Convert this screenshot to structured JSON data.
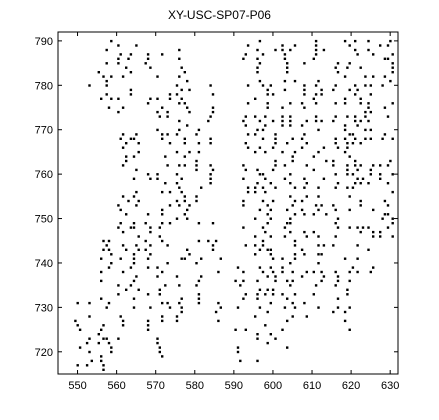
{
  "chart_data": {
    "type": "scatter",
    "title": "XY-USC-SP07-P06",
    "xlabel": "",
    "ylabel": "",
    "xlim": [
      545,
      632
    ],
    "ylim": [
      715,
      792
    ],
    "grid": false,
    "x_ticks": [
      "550",
      "560",
      "570",
      "580",
      "590",
      "600",
      "610",
      "620",
      "630"
    ],
    "y_ticks": [
      "720",
      "730",
      "740",
      "750",
      "760",
      "770",
      "780",
      "790"
    ],
    "marker_color": "#000000",
    "columns": [
      {
        "x": 550,
        "ranges": [
          [
            716,
            731
          ]
        ]
      },
      {
        "x": 553,
        "ranges": [
          [
            716,
            731
          ],
          [
            778,
            780
          ]
        ]
      },
      {
        "x": 556,
        "ranges": [
          [
            716,
            745
          ],
          [
            775,
            783
          ]
        ]
      },
      {
        "x": 558,
        "ranges": [
          [
            718,
            745
          ],
          [
            770,
            790
          ]
        ]
      },
      {
        "x": 561,
        "ranges": [
          [
            723,
            790
          ]
        ]
      },
      {
        "x": 563,
        "ranges": [
          [
            733,
            790
          ]
        ]
      },
      {
        "x": 565,
        "ranges": [
          [
            728,
            770
          ],
          [
            785,
            790
          ]
        ]
      },
      {
        "x": 568,
        "ranges": [
          [
            723,
            760
          ],
          [
            776,
            790
          ]
        ]
      },
      {
        "x": 571,
        "ranges": [
          [
            718,
            760
          ],
          [
            768,
            790
          ]
        ]
      },
      {
        "x": 573,
        "ranges": [
          [
            728,
            780
          ]
        ]
      },
      {
        "x": 576,
        "ranges": [
          [
            723,
            790
          ]
        ]
      },
      {
        "x": 578,
        "ranges": [
          [
            740,
            783
          ]
        ]
      },
      {
        "x": 581,
        "ranges": [
          [
            730,
            770
          ]
        ]
      },
      {
        "x": 584,
        "ranges": [
          [
            743,
            780
          ]
        ]
      },
      {
        "x": 586,
        "ranges": [
          [
            725,
            745
          ]
        ]
      },
      {
        "x": 591,
        "ranges": [
          [
            718,
            740
          ]
        ]
      },
      {
        "x": 593,
        "ranges": [
          [
            723,
            790
          ]
        ]
      },
      {
        "x": 596,
        "ranges": [
          [
            718,
            790
          ]
        ]
      },
      {
        "x": 598,
        "ranges": [
          [
            722,
            790
          ]
        ]
      },
      {
        "x": 600,
        "ranges": [
          [
            723,
            790
          ]
        ]
      },
      {
        "x": 603,
        "ranges": [
          [
            720,
            790
          ]
        ]
      },
      {
        "x": 605,
        "ranges": [
          [
            728,
            790
          ]
        ]
      },
      {
        "x": 608,
        "ranges": [
          [
            728,
            790
          ]
        ]
      },
      {
        "x": 611,
        "ranges": [
          [
            730,
            790
          ]
        ]
      },
      {
        "x": 613,
        "ranges": [
          [
            735,
            790
          ]
        ]
      },
      {
        "x": 616,
        "ranges": [
          [
            728,
            785
          ]
        ]
      },
      {
        "x": 619,
        "ranges": [
          [
            725,
            790
          ]
        ]
      },
      {
        "x": 621,
        "ranges": [
          [
            735,
            790
          ]
        ]
      },
      {
        "x": 623,
        "ranges": [
          [
            740,
            790
          ]
        ]
      },
      {
        "x": 625,
        "ranges": [
          [
            738,
            790
          ]
        ]
      },
      {
        "x": 628,
        "ranges": [
          [
            745,
            790
          ]
        ]
      },
      {
        "x": 630,
        "ranges": [
          [
            745,
            790
          ]
        ]
      }
    ]
  }
}
